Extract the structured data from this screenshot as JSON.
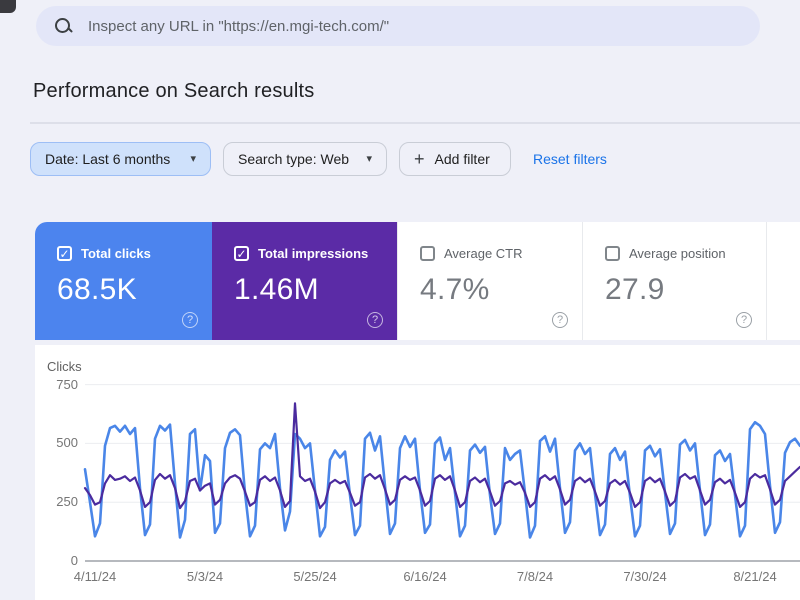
{
  "search_bar": {
    "placeholder": "Inspect any URL in \"https://en.mgi-tech.com/\""
  },
  "page": {
    "title": "Performance on Search results"
  },
  "filters": {
    "date_label": "Date: Last 6 months",
    "search_type_label": "Search type: Web",
    "add_filter_label": "Add filter",
    "reset_label": "Reset filters"
  },
  "icons": {
    "check": "✓",
    "question": "?",
    "caret": "▾",
    "plus": "+"
  },
  "theme": {
    "clicks_blue": "#4c84ee",
    "impressions_purple": "#5b2ba6",
    "link_blue": "#1a73e8",
    "chip_selected_bg": "#cfe1fb",
    "page_bg": "#eff0f8"
  },
  "metrics": [
    {
      "label": "Total clicks",
      "value": "68.5K",
      "checked": true,
      "color": "#4c84ee"
    },
    {
      "label": "Total impressions",
      "value": "1.46M",
      "checked": true,
      "color": "#5b2ba6"
    },
    {
      "label": "Average CTR",
      "value": "4.7%",
      "checked": false,
      "color": "#ffffff"
    },
    {
      "label": "Average position",
      "value": "27.9",
      "checked": false,
      "color": "#ffffff"
    }
  ],
  "chart_data": {
    "type": "line",
    "ylabel": "Clicks",
    "ylim": [
      0,
      750
    ],
    "yticks": [
      0,
      250,
      500,
      750
    ],
    "grid": true,
    "legend": "none",
    "x_unit": "day_index",
    "xtick_days": [
      2,
      24,
      46,
      68,
      90,
      112,
      134
    ],
    "xtick_labels": [
      "4/11/24",
      "5/3/24",
      "5/25/24",
      "6/16/24",
      "7/8/24",
      "7/30/24",
      "8/21/24"
    ],
    "series": [
      {
        "name": "Total clicks",
        "color": "#4a86e8",
        "width": 2.6,
        "values": [
          390,
          250,
          105,
          160,
          490,
          565,
          575,
          550,
          575,
          540,
          565,
          310,
          110,
          155,
          520,
          575,
          555,
          580,
          330,
          100,
          175,
          540,
          560,
          300,
          450,
          425,
          120,
          160,
          480,
          545,
          560,
          535,
          290,
          105,
          150,
          475,
          500,
          480,
          540,
          310,
          130,
          210,
          540,
          520,
          480,
          500,
          300,
          105,
          145,
          430,
          470,
          440,
          465,
          280,
          110,
          150,
          520,
          545,
          470,
          530,
          320,
          115,
          160,
          480,
          530,
          485,
          520,
          300,
          120,
          155,
          500,
          525,
          430,
          480,
          290,
          105,
          150,
          470,
          495,
          460,
          485,
          280,
          115,
          160,
          480,
          430,
          455,
          470,
          290,
          100,
          150,
          510,
          530,
          465,
          520,
          310,
          120,
          165,
          470,
          500,
          455,
          480,
          285,
          110,
          155,
          455,
          480,
          430,
          465,
          275,
          105,
          150,
          470,
          490,
          445,
          475,
          290,
          115,
          160,
          495,
          515,
          470,
          500,
          300,
          110,
          155,
          450,
          470,
          425,
          455,
          280,
          105,
          150,
          560,
          590,
          575,
          540,
          320,
          120,
          165,
          460,
          505,
          520,
          490
        ]
      },
      {
        "name": "Total impressions (scaled to clicks axis)",
        "color": "#4b2b9e",
        "width": 2.2,
        "values": [
          310,
          280,
          240,
          250,
          330,
          365,
          345,
          350,
          360,
          340,
          355,
          300,
          230,
          250,
          345,
          370,
          350,
          365,
          310,
          225,
          255,
          340,
          350,
          300,
          320,
          330,
          240,
          260,
          330,
          355,
          365,
          350,
          295,
          235,
          250,
          345,
          360,
          340,
          355,
          300,
          230,
          255,
          670,
          360,
          340,
          350,
          295,
          225,
          250,
          330,
          345,
          330,
          340,
          290,
          235,
          250,
          355,
          370,
          350,
          365,
          305,
          240,
          260,
          345,
          360,
          345,
          355,
          300,
          235,
          255,
          350,
          365,
          345,
          360,
          300,
          230,
          250,
          340,
          355,
          335,
          350,
          295,
          235,
          255,
          330,
          340,
          325,
          335,
          290,
          230,
          250,
          350,
          365,
          345,
          360,
          305,
          240,
          260,
          340,
          355,
          335,
          350,
          295,
          235,
          255,
          330,
          345,
          325,
          340,
          290,
          230,
          250,
          340,
          355,
          335,
          350,
          295,
          235,
          255,
          355,
          370,
          350,
          360,
          300,
          240,
          260,
          335,
          350,
          330,
          345,
          290,
          230,
          250,
          350,
          370,
          355,
          365,
          305,
          240,
          260,
          340,
          360,
          380,
          400
        ]
      }
    ]
  }
}
